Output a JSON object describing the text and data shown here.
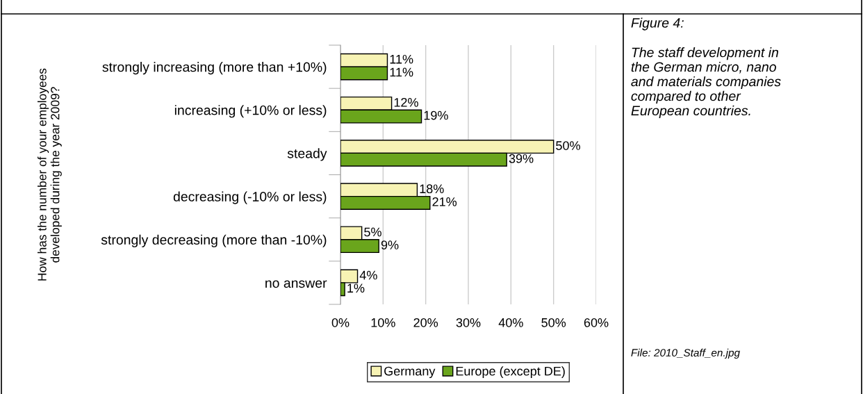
{
  "chart_data": {
    "type": "bar",
    "orientation": "horizontal",
    "ylabel": "How has the number of your employees\ndeveloped during the year 2009?",
    "categories": [
      "strongly increasing (more than +10%)",
      "increasing (+10% or less)",
      "steady",
      "decreasing (-10% or less)",
      "strongly decreasing (more than -10%)",
      "no answer"
    ],
    "series": [
      {
        "name": "Germany",
        "color": "#f7f3b4",
        "values": [
          11,
          12,
          50,
          18,
          5,
          4
        ],
        "value_labels": [
          "11%",
          "12%",
          "50%",
          "18%",
          "5%",
          "4%"
        ]
      },
      {
        "name": "Europe (except DE)",
        "color": "#6aa51c",
        "values": [
          11,
          19,
          39,
          21,
          9,
          1
        ],
        "value_labels": [
          "11%",
          "19%",
          "39%",
          "21%",
          "9%",
          "1%"
        ]
      }
    ],
    "xlim": [
      0,
      60
    ],
    "xticks": [
      {
        "value": 0,
        "label": "0%"
      },
      {
        "value": 10,
        "label": "10%"
      },
      {
        "value": 20,
        "label": "20%"
      },
      {
        "value": 30,
        "label": "30%"
      },
      {
        "value": 40,
        "label": "40%"
      },
      {
        "value": 50,
        "label": "50%"
      },
      {
        "value": 60,
        "label": "60%"
      }
    ],
    "grid": "x",
    "legend": "bottom",
    "annotations": [
      "Figure 4:",
      "The staff development in\nthe German micro, nano\nand materials companies\ncompared to other\nEuropean countries.",
      "File: 2010_Staff_en.jpg"
    ]
  }
}
